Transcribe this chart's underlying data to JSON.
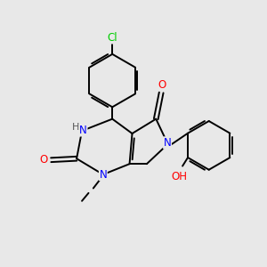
{
  "background_color": "#e8e8e8",
  "bond_color": "#000000",
  "atom_colors": {
    "N": "#0000ff",
    "O": "#ff0000",
    "Cl": "#00cc00",
    "H": "#555555",
    "C": "#000000"
  },
  "figsize": [
    3.0,
    3.0
  ],
  "dpi": 100,
  "lw": 1.4
}
